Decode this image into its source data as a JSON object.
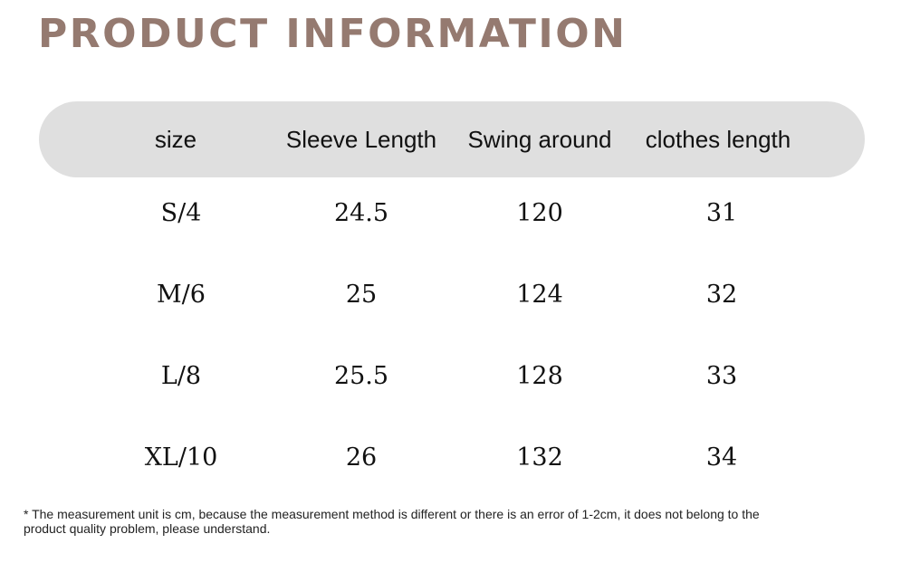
{
  "title": "PRODUCT INFORMATION",
  "colors": {
    "title": "#957a70",
    "header_bg": "#dfdfdf"
  },
  "table": {
    "headers": [
      "size",
      "Sleeve Length",
      "Swing around",
      "clothes length"
    ],
    "rows": [
      [
        "S/4",
        "24.5",
        "120",
        "31"
      ],
      [
        "M/6",
        "25",
        "124",
        "32"
      ],
      [
        "L/8",
        "25.5",
        "128",
        "33"
      ],
      [
        "XL/10",
        "26",
        "132",
        "34"
      ]
    ]
  },
  "note": "* The measurement unit is cm, because the measurement method is different or there is an error of 1-2cm, it does not belong to the product quality problem, please understand."
}
